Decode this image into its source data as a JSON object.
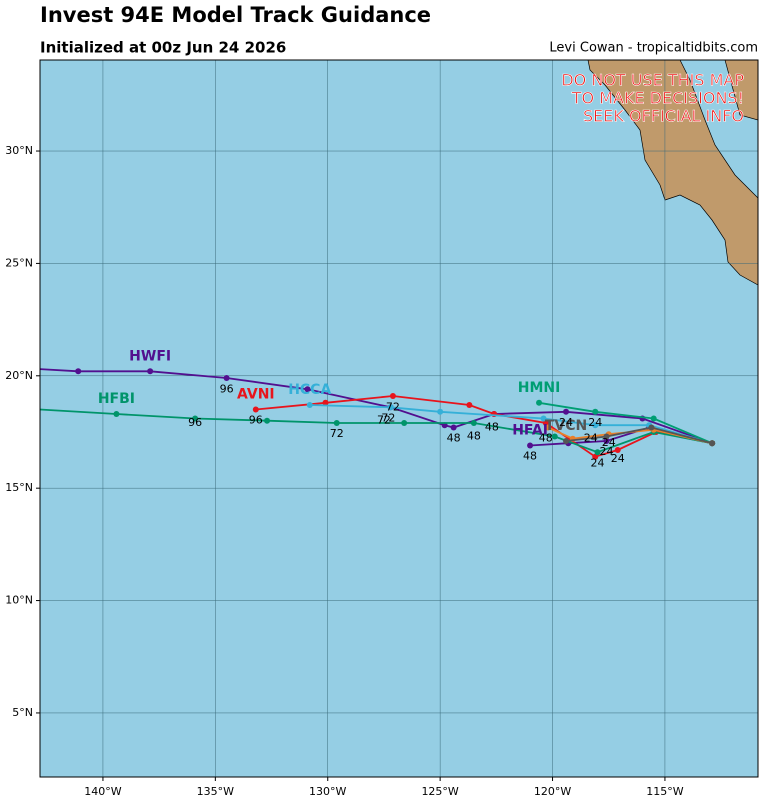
{
  "header": {
    "title": "Invest 94E Model Track Guidance",
    "subtitle": "Initialized at 00z Jun 24 2026",
    "credit": "Levi Cowan - tropicaltidbits.com"
  },
  "warning": [
    "DO NOT USE THIS MAP",
    "TO MAKE DECISIONS!",
    "SEEK OFFICIAL INFO"
  ],
  "map": {
    "xlim": [
      -142.8,
      -110.86
    ],
    "ylim": [
      2.15,
      34.05
    ],
    "xticks": [
      {
        "value": -140,
        "label": "140°W"
      },
      {
        "value": -135,
        "label": "135°W"
      },
      {
        "value": -130,
        "label": "130°W"
      },
      {
        "value": -125,
        "label": "125°W"
      },
      {
        "value": -120,
        "label": "120°W"
      },
      {
        "value": -115,
        "label": "115°W"
      }
    ],
    "yticks": [
      {
        "value": 5,
        "label": "5°N"
      },
      {
        "value": 10,
        "label": "10°N"
      },
      {
        "value": 15,
        "label": "15°N"
      },
      {
        "value": 20,
        "label": "20°N"
      },
      {
        "value": 25,
        "label": "25°N"
      },
      {
        "value": 30,
        "label": "30°N"
      }
    ],
    "ocean_color": "#95cee4",
    "land_color": "#c09a6b",
    "grid": true
  },
  "tracks": [
    {
      "name": "HWFI",
      "color": "#52108f",
      "lon": [
        -112.9,
        -116.0,
        -119.4,
        -122.6,
        -124.4,
        -124.8,
        -127.2,
        -130.9,
        -134.5,
        -137.9,
        -141.1,
        -142.8
      ],
      "lat": [
        17.0,
        18.1,
        18.4,
        18.3,
        17.7,
        17.8,
        18.6,
        19.4,
        19.9,
        20.2,
        20.2,
        20.3
      ]
    },
    {
      "name": "HFAI",
      "color": "#52108f",
      "lon": [
        -112.9,
        -115.7,
        -117.6,
        -119.3,
        -121.0
      ],
      "lat": [
        17.0,
        17.7,
        17.1,
        17.0,
        16.9
      ]
    },
    {
      "name": "AVNI",
      "color": "#e8141c",
      "lon": [
        -112.9,
        -115.4,
        -117.1,
        -118.1,
        -120.3,
        -122.6,
        -123.7,
        -127.1,
        -130.1,
        -133.2
      ],
      "lat": [
        17.0,
        17.5,
        16.7,
        16.4,
        17.9,
        18.3,
        18.7,
        19.1,
        18.8,
        18.5
      ]
    },
    {
      "name": "HCCA",
      "color": "#35b0d8",
      "lon": [
        -112.9,
        -115.7,
        -118.1,
        -120.4,
        -125.0,
        -127.2,
        -130.8
      ],
      "lat": [
        17.0,
        17.8,
        17.8,
        18.1,
        18.4,
        18.6,
        18.7
      ]
    },
    {
      "name": "HMNI",
      "color": "#009e73",
      "lon": [
        -112.9,
        -115.5,
        -118.1,
        -120.6
      ],
      "lat": [
        17.0,
        18.1,
        18.4,
        18.8
      ]
    },
    {
      "name": "HFBI",
      "color": "#00946a",
      "lon": [
        -112.9,
        -115.5,
        -118.0,
        -119.9,
        -123.5,
        -126.6,
        -129.6,
        -132.7,
        -135.9,
        -139.4,
        -142.8
      ],
      "lat": [
        17.0,
        17.5,
        16.6,
        17.3,
        17.9,
        17.9,
        17.9,
        18.0,
        18.1,
        18.3,
        18.5
      ]
    },
    {
      "color": "#e8802a",
      "lon": [
        -112.9,
        -115.5,
        -117.5,
        -119.1,
        -120.2
      ],
      "lat": [
        17.0,
        17.6,
        17.4,
        17.2,
        17.7
      ]
    },
    {
      "name": "TVCN",
      "color": "#555555",
      "lon": [
        -112.9,
        -115.6,
        -117.6,
        -119.4
      ],
      "lat": [
        17.0,
        17.7,
        17.3,
        17.1
      ]
    }
  ],
  "hour_labels": [
    {
      "hour": 96,
      "lon": -134.5,
      "lat": 19.4
    },
    {
      "hour": 96,
      "lon": -135.9,
      "lat": 17.9
    },
    {
      "hour": 96,
      "lon": -133.2,
      "lat": 18.0
    },
    {
      "hour": 72,
      "lon": -129.6,
      "lat": 17.4
    },
    {
      "hour": 72,
      "lon": -127.5,
      "lat": 18.0
    },
    {
      "hour": 72,
      "lon": -127.3,
      "lat": 18.1
    },
    {
      "hour": 72,
      "lon": -127.1,
      "lat": 18.6
    },
    {
      "hour": 48,
      "lon": -124.4,
      "lat": 17.2
    },
    {
      "hour": 48,
      "lon": -123.5,
      "lat": 17.3
    },
    {
      "hour": 48,
      "lon": -122.7,
      "lat": 17.7
    },
    {
      "hour": 48,
      "lon": -121.0,
      "lat": 16.4
    },
    {
      "hour": 48,
      "lon": -120.3,
      "lat": 17.2
    },
    {
      "hour": 24,
      "lon": -119.4,
      "lat": 17.9
    },
    {
      "hour": 24,
      "lon": -118.1,
      "lat": 17.9
    },
    {
      "hour": 24,
      "lon": -118.3,
      "lat": 17.2
    },
    {
      "hour": 24,
      "lon": -117.5,
      "lat": 17.0
    },
    {
      "hour": 24,
      "lon": -117.6,
      "lat": 16.6
    },
    {
      "hour": 24,
      "lon": -117.1,
      "lat": 16.3
    },
    {
      "hour": 24,
      "lon": -118.0,
      "lat": 16.1
    }
  ]
}
